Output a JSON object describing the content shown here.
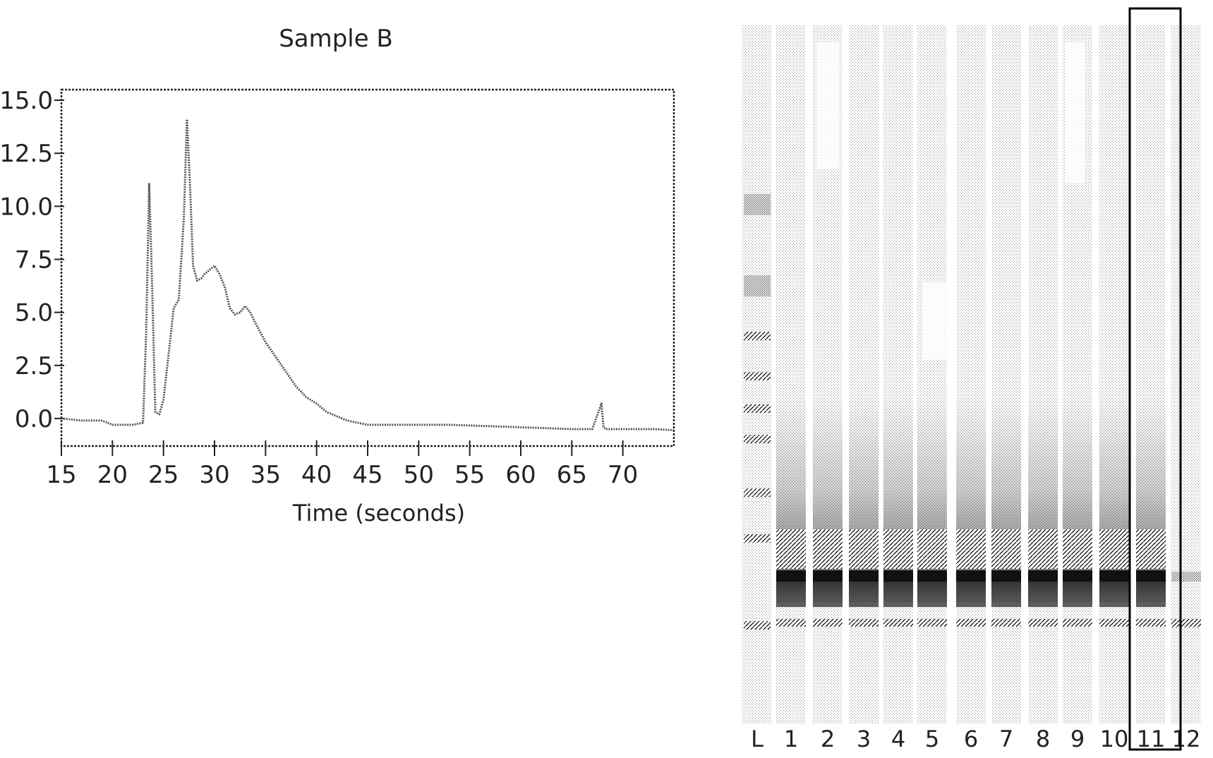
{
  "chart_data": [
    {
      "type": "line",
      "title": "Sample B",
      "xlabel": "Time (seconds)",
      "ylabel": "",
      "xlim": [
        15,
        75
      ],
      "ylim": [
        -1.3,
        15.5
      ],
      "xticks": [
        15,
        20,
        25,
        30,
        35,
        40,
        45,
        50,
        55,
        60,
        65,
        70
      ],
      "yticks": [
        "0.0",
        "2.5",
        "5.0",
        "7.5",
        "10.0",
        "12.5",
        "15.0"
      ],
      "grid": false,
      "series": [
        {
          "x": [
            15,
            17,
            19,
            20,
            21,
            22,
            23,
            23.3,
            23.6,
            23.9,
            24.2,
            24.6,
            25,
            25.5,
            26,
            26.5,
            27,
            27.3,
            27.6,
            27.9,
            28.3,
            28.7,
            29,
            29.5,
            30,
            30.5,
            31,
            31.5,
            32,
            32.5,
            33,
            33.5,
            34,
            35,
            36,
            37,
            38,
            39,
            40,
            41,
            42,
            43,
            44,
            45,
            47,
            50,
            53,
            56,
            59,
            62,
            65,
            67,
            67.9,
            68.1,
            68.3,
            69,
            71,
            73,
            75
          ],
          "y": [
            0,
            -0.1,
            -0.1,
            -0.3,
            -0.3,
            -0.3,
            -0.2,
            4,
            11.1,
            6,
            0.3,
            0.2,
            0.9,
            3,
            5.2,
            5.6,
            9.5,
            14.1,
            11,
            7.2,
            6.5,
            6.6,
            6.8,
            7,
            7.2,
            6.8,
            6.2,
            5.2,
            4.9,
            5.0,
            5.3,
            5.0,
            4.5,
            3.6,
            2.9,
            2.2,
            1.5,
            1.0,
            0.7,
            0.3,
            0.1,
            -0.1,
            -0.2,
            -0.3,
            -0.3,
            -0.3,
            -0.3,
            -0.35,
            -0.4,
            -0.45,
            -0.5,
            -0.5,
            0.7,
            -0.4,
            -0.5,
            -0.5,
            -0.5,
            -0.5,
            -0.55
          ]
        }
      ]
    },
    {
      "type": "heatmap",
      "lane_labels": [
        "L",
        "1",
        "2",
        "3",
        "4",
        "5",
        "6",
        "7",
        "8",
        "9",
        "10",
        "11",
        "12"
      ],
      "highlighted_lane": "11"
    }
  ]
}
